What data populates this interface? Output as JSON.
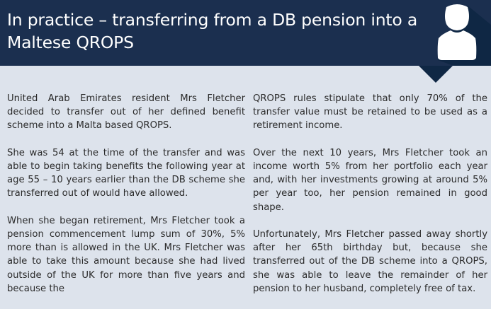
{
  "header": {
    "title": "In practice – transferring from a DB pension into a Maltese QROPS",
    "icon": "person-avatar-icon"
  },
  "colors": {
    "header": "#1b2f4f",
    "background": "#dde3ec"
  },
  "left_column": [
    "United Arab Emirates resident Mrs Fletcher decided to transfer out of her defined benefit scheme into a Malta based QROPS.",
    "She was 54 at the time of the transfer and was able to begin taking benefits the following year at age 55 – 10 years earlier than the DB scheme she transferred out of would have allowed.",
    "When she began retirement, Mrs Fletcher took a pension commencement lump sum of 30%, 5% more than is allowed in the UK. Mrs Fletcher was able to take this amount because she had lived outside of the UK for more than five years and because the"
  ],
  "right_column": [
    "QROPS rules stipulate that only 70% of the transfer value must be retained to be used as a retirement income.",
    "Over the next 10 years, Mrs Fletcher took an income worth 5% from her portfolio each year and, with her investments growing at around 5% per year too, her pension remained in good shape.",
    "Unfortunately, Mrs Fletcher passed away shortly after her 65th birthday but, because she transferred out of the DB scheme into a QROPS, she was able to leave the remainder of her pension to her husband, completely free of tax."
  ]
}
